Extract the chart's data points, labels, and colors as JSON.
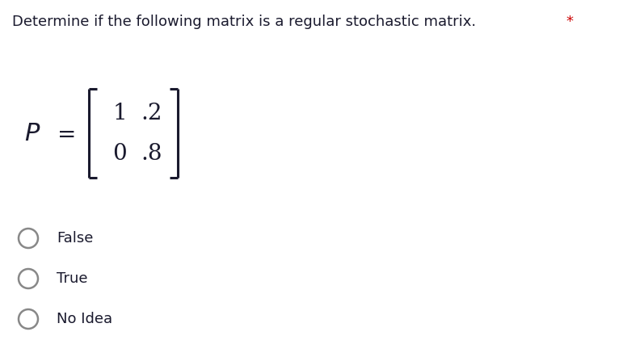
{
  "title_main": "Determine if the following matrix is a regular stochastic matrix.",
  "title_asterisk": "*",
  "title_fontsize": 13.0,
  "title_color": "#1a1a2e",
  "asterisk_color": "#cc0000",
  "matrix_label_P": "P",
  "matrix_label_eq": "=",
  "matrix_row1": [
    "1",
    ".2"
  ],
  "matrix_row2": [
    "0",
    ".8"
  ],
  "options": [
    "False",
    "True",
    "No Idea"
  ],
  "option_fontsize": 13.0,
  "matrix_fontsize": 20,
  "bg_color": "#ffffff",
  "text_color": "#1a1a2e",
  "circle_color": "#888888",
  "bracket_color": "#1a1a2e",
  "bracket_lw": 2.2,
  "fig_width": 7.71,
  "fig_height": 4.42,
  "dpi": 100
}
